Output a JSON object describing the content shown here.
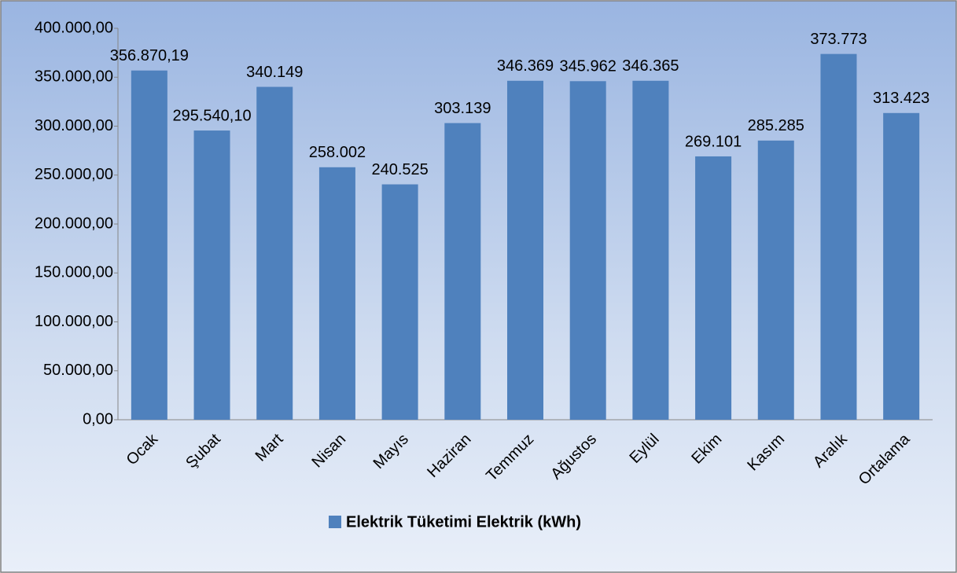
{
  "chart_data": {
    "type": "bar",
    "categories": [
      "Ocak",
      "Şubat",
      "Mart",
      "Nisan",
      "Mayıs",
      "Haziran",
      "Temmuz",
      "Ağustos",
      "Eylül",
      "Ekim",
      "Kasım",
      "Aralık",
      "Ortalama"
    ],
    "series": [
      {
        "name": "Elektrik Tüketimi Elektrik (kWh)",
        "color": "#4f81bd",
        "values": [
          356870.19,
          295540.1,
          340149,
          258002,
          240525,
          303139,
          346369,
          345962,
          346365,
          269101,
          285285,
          373773,
          313423
        ],
        "value_labels": [
          "356.870,19",
          "295.540,10",
          "340.149",
          "258.002",
          "240.525",
          "303.139",
          "346.369",
          "345.962",
          "346.365",
          "269.101",
          "285.285",
          "373.773",
          "313.423"
        ]
      }
    ],
    "ylim": [
      0,
      400000
    ],
    "yticks": [
      {
        "value": 0,
        "label": "0,00"
      },
      {
        "value": 50000,
        "label": "50.000,00"
      },
      {
        "value": 100000,
        "label": "100.000,00"
      },
      {
        "value": 150000,
        "label": "150.000,00"
      },
      {
        "value": 200000,
        "label": "200.000,00"
      },
      {
        "value": 250000,
        "label": "250.000,00"
      },
      {
        "value": 300000,
        "label": "300.000,00"
      },
      {
        "value": 350000,
        "label": "350.000,00"
      },
      {
        "value": 400000,
        "label": "400.000,00"
      }
    ],
    "grid": false,
    "legend": "bottom"
  }
}
